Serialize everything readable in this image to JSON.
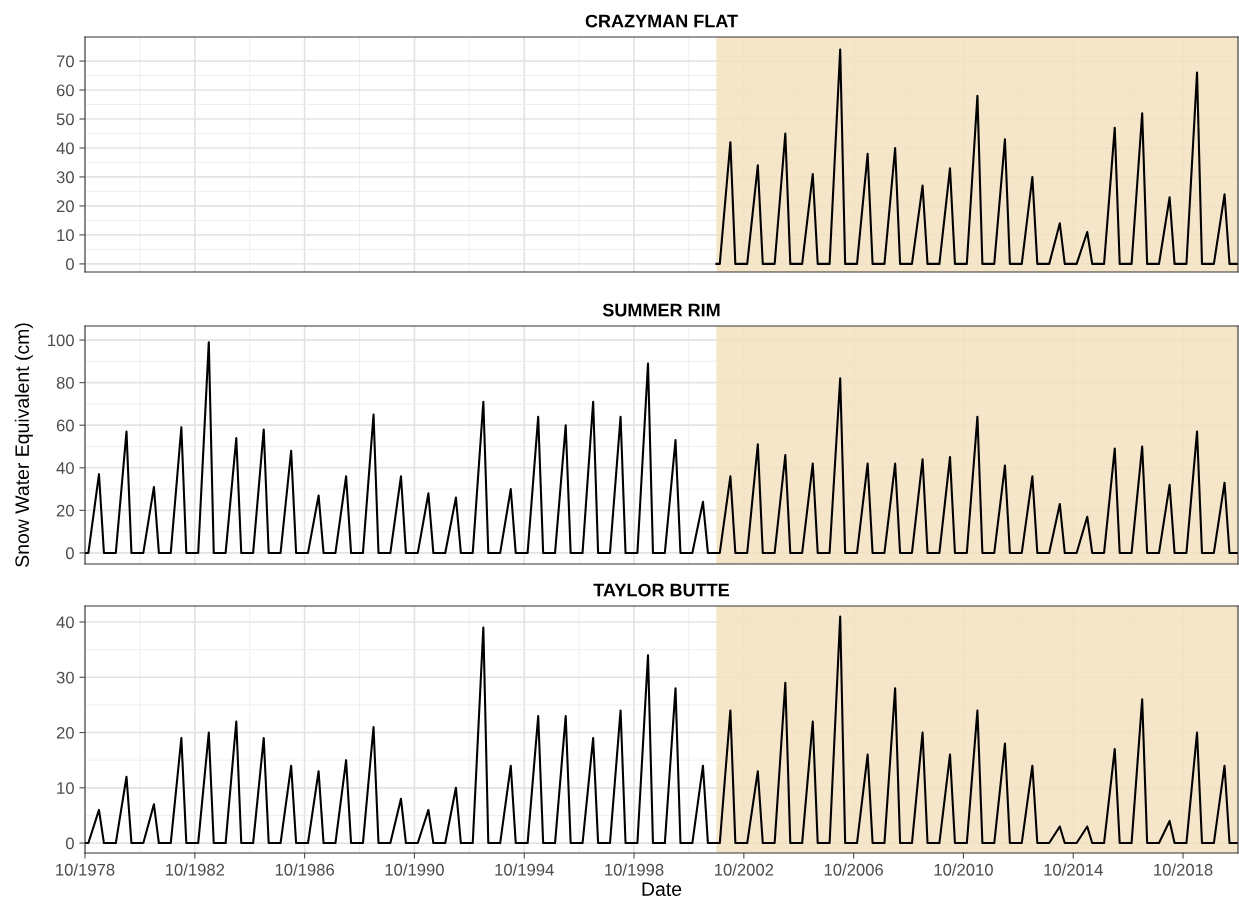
{
  "chart_data": [
    {
      "type": "line",
      "title": "CRAZYMAN FLAT",
      "color": "#000000",
      "tick_labels": "y",
      "grid": true,
      "x": [
        "2001-10-01",
        "2001-11-15",
        "2002-04-05",
        "2002-06-10",
        "2002-11-15",
        "2003-04-05",
        "2003-06-10",
        "2003-11-15",
        "2004-04-05",
        "2004-06-10",
        "2004-11-15",
        "2005-04-05",
        "2005-06-10",
        "2005-11-15",
        "2006-04-05",
        "2006-06-10",
        "2006-11-15",
        "2007-04-05",
        "2007-06-10",
        "2007-11-15",
        "2008-04-05",
        "2008-06-10",
        "2008-11-15",
        "2009-04-05",
        "2009-06-10",
        "2009-11-15",
        "2010-04-05",
        "2010-06-10",
        "2010-11-15",
        "2011-04-05",
        "2011-06-10",
        "2011-11-15",
        "2012-04-05",
        "2012-06-10",
        "2012-11-15",
        "2013-04-05",
        "2013-06-10",
        "2013-11-15",
        "2014-04-05",
        "2014-06-10",
        "2014-11-15",
        "2015-04-05",
        "2015-06-10",
        "2015-11-15",
        "2016-04-05",
        "2016-06-10",
        "2016-11-15",
        "2017-04-05",
        "2017-06-10",
        "2017-11-15",
        "2018-04-05",
        "2018-06-10",
        "2018-11-15",
        "2019-04-05",
        "2019-06-10",
        "2019-11-15",
        "2020-04-05",
        "2020-06-10",
        "2020-09-30"
      ],
      "values": [
        0,
        0,
        42,
        0,
        0,
        34,
        0,
        0,
        45,
        0,
        0,
        31,
        0,
        0,
        74,
        0,
        0,
        38,
        0,
        0,
        40,
        0,
        0,
        27,
        0,
        0,
        33,
        0,
        0,
        58,
        0,
        0,
        43,
        0,
        0,
        30,
        0,
        0,
        14,
        0,
        0,
        11,
        0,
        0,
        47,
        0,
        0,
        52,
        0,
        0,
        23,
        0,
        0,
        66,
        0,
        0,
        24,
        0,
        0
      ],
      "xlim": [
        "1978-10-01",
        "2020-10-01"
      ],
      "xticks": [
        "1978-10-01",
        "1982-10-01",
        "1986-10-01",
        "1990-10-01",
        "1994-10-01",
        "1998-10-01",
        "2002-10-01",
        "2006-10-01",
        "2010-10-01",
        "2014-10-01",
        "2018-10-01"
      ],
      "ylim": [
        -2.8,
        78.3
      ],
      "yticks": [
        0,
        10,
        20,
        30,
        40,
        50,
        60,
        70
      ],
      "bands": [
        {
          "axis": "x",
          "from": "2001-10-01",
          "to": "2020-10-01",
          "color": "#f3e0bf"
        }
      ]
    },
    {
      "type": "line",
      "title": "SUMMER RIM",
      "ylabel": "Snow Water Equivalent (cm)",
      "color": "#000000",
      "tick_labels": "y",
      "grid": true,
      "x": [
        "1978-10-01",
        "1978-11-15",
        "1979-04-05",
        "1979-06-10",
        "1979-11-15",
        "1980-04-05",
        "1980-06-10",
        "1980-11-15",
        "1981-04-05",
        "1981-06-10",
        "1981-11-15",
        "1982-04-05",
        "1982-06-10",
        "1982-11-15",
        "1983-04-05",
        "1983-06-10",
        "1983-11-15",
        "1984-04-05",
        "1984-06-10",
        "1984-11-15",
        "1985-04-05",
        "1985-06-10",
        "1985-11-15",
        "1986-04-05",
        "1986-06-10",
        "1986-11-15",
        "1987-04-05",
        "1987-06-10",
        "1987-11-15",
        "1988-04-05",
        "1988-06-10",
        "1988-11-15",
        "1989-04-05",
        "1989-06-10",
        "1989-11-15",
        "1990-04-05",
        "1990-06-10",
        "1990-11-15",
        "1991-04-05",
        "1991-06-10",
        "1991-11-15",
        "1992-04-05",
        "1992-06-10",
        "1992-11-15",
        "1993-04-05",
        "1993-06-10",
        "1993-11-15",
        "1994-04-05",
        "1994-06-10",
        "1994-11-15",
        "1995-04-05",
        "1995-06-10",
        "1995-11-15",
        "1996-04-05",
        "1996-06-10",
        "1996-11-15",
        "1997-04-05",
        "1997-06-10",
        "1997-11-15",
        "1998-04-05",
        "1998-06-10",
        "1998-11-15",
        "1999-04-05",
        "1999-06-10",
        "1999-11-15",
        "2000-04-05",
        "2000-06-10",
        "2000-11-15",
        "2001-04-05",
        "2001-06-10",
        "2001-11-15",
        "2002-04-05",
        "2002-06-10",
        "2002-11-15",
        "2003-04-05",
        "2003-06-10",
        "2003-11-15",
        "2004-04-05",
        "2004-06-10",
        "2004-11-15",
        "2005-04-05",
        "2005-06-10",
        "2005-11-15",
        "2006-04-05",
        "2006-06-10",
        "2006-11-15",
        "2007-04-05",
        "2007-06-10",
        "2007-11-15",
        "2008-04-05",
        "2008-06-10",
        "2008-11-15",
        "2009-04-05",
        "2009-06-10",
        "2009-11-15",
        "2010-04-05",
        "2010-06-10",
        "2010-11-15",
        "2011-04-05",
        "2011-06-10",
        "2011-11-15",
        "2012-04-05",
        "2012-06-10",
        "2012-11-15",
        "2013-04-05",
        "2013-06-10",
        "2013-11-15",
        "2014-04-05",
        "2014-06-10",
        "2014-11-15",
        "2015-04-05",
        "2015-06-10",
        "2015-11-15",
        "2016-04-05",
        "2016-06-10",
        "2016-11-15",
        "2017-04-05",
        "2017-06-10",
        "2017-11-15",
        "2018-04-05",
        "2018-06-10",
        "2018-11-15",
        "2019-04-05",
        "2019-06-10",
        "2019-11-15",
        "2020-04-05",
        "2020-06-10",
        "2020-09-30"
      ],
      "values": [
        0,
        0,
        37,
        0,
        0,
        57,
        0,
        0,
        31,
        0,
        0,
        59,
        0,
        0,
        99,
        0,
        0,
        54,
        0,
        0,
        58,
        0,
        0,
        48,
        0,
        0,
        27,
        0,
        0,
        36,
        0,
        0,
        65,
        0,
        0,
        36,
        0,
        0,
        28,
        0,
        0,
        26,
        0,
        0,
        71,
        0,
        0,
        30,
        0,
        0,
        64,
        0,
        0,
        60,
        0,
        0,
        71,
        0,
        0,
        64,
        0,
        0,
        89,
        0,
        0,
        53,
        0,
        0,
        24,
        0,
        0,
        36,
        0,
        0,
        51,
        0,
        0,
        46,
        0,
        0,
        42,
        0,
        0,
        82,
        0,
        0,
        42,
        0,
        0,
        42,
        0,
        0,
        44,
        0,
        0,
        45,
        0,
        0,
        64,
        0,
        0,
        41,
        0,
        0,
        36,
        0,
        0,
        23,
        0,
        0,
        17,
        0,
        0,
        49,
        0,
        0,
        50,
        0,
        0,
        32,
        0,
        0,
        57,
        0,
        0,
        33,
        0,
        0
      ],
      "xlim": [
        "1978-10-01",
        "2020-10-01"
      ],
      "xticks": [
        "1978-10-01",
        "1982-10-01",
        "1986-10-01",
        "1990-10-01",
        "1994-10-01",
        "1998-10-01",
        "2002-10-01",
        "2006-10-01",
        "2010-10-01",
        "2014-10-01",
        "2018-10-01"
      ],
      "ylim": [
        -5.2,
        106.6
      ],
      "yticks": [
        0,
        20,
        40,
        60,
        80,
        100
      ],
      "bands": [
        {
          "axis": "x",
          "from": "2001-10-01",
          "to": "2020-10-01",
          "color": "#f3e0bf"
        }
      ]
    },
    {
      "type": "line",
      "title": "TAYLOR BUTTE",
      "xlabel": "Date",
      "color": "#000000",
      "grid": true,
      "x": [
        "1978-10-01",
        "1978-11-15",
        "1979-04-05",
        "1979-06-10",
        "1979-11-15",
        "1980-04-05",
        "1980-06-10",
        "1980-11-15",
        "1981-04-05",
        "1981-06-10",
        "1981-11-15",
        "1982-04-05",
        "1982-06-10",
        "1982-11-15",
        "1983-04-05",
        "1983-06-10",
        "1983-11-15",
        "1984-04-05",
        "1984-06-10",
        "1984-11-15",
        "1985-04-05",
        "1985-06-10",
        "1985-11-15",
        "1986-04-05",
        "1986-06-10",
        "1986-11-15",
        "1987-04-05",
        "1987-06-10",
        "1987-11-15",
        "1988-04-05",
        "1988-06-10",
        "1988-11-15",
        "1989-04-05",
        "1989-06-10",
        "1989-11-15",
        "1990-04-05",
        "1990-06-10",
        "1990-11-15",
        "1991-04-05",
        "1991-06-10",
        "1991-11-15",
        "1992-04-05",
        "1992-06-10",
        "1992-11-15",
        "1993-04-05",
        "1993-06-10",
        "1993-11-15",
        "1994-04-05",
        "1994-06-10",
        "1994-11-15",
        "1995-04-05",
        "1995-06-10",
        "1995-11-15",
        "1996-04-05",
        "1996-06-10",
        "1996-11-15",
        "1997-04-05",
        "1997-06-10",
        "1997-11-15",
        "1998-04-05",
        "1998-06-10",
        "1998-11-15",
        "1999-04-05",
        "1999-06-10",
        "1999-11-15",
        "2000-04-05",
        "2000-06-10",
        "2000-11-15",
        "2001-04-05",
        "2001-06-10",
        "2001-11-15",
        "2002-04-05",
        "2002-06-10",
        "2002-11-15",
        "2003-04-05",
        "2003-06-10",
        "2003-11-15",
        "2004-04-05",
        "2004-06-10",
        "2004-11-15",
        "2005-04-05",
        "2005-06-10",
        "2005-11-15",
        "2006-04-05",
        "2006-06-10",
        "2006-11-15",
        "2007-04-05",
        "2007-06-10",
        "2007-11-15",
        "2008-04-05",
        "2008-06-10",
        "2008-11-15",
        "2009-04-05",
        "2009-06-10",
        "2009-11-15",
        "2010-04-05",
        "2010-06-10",
        "2010-11-15",
        "2011-04-05",
        "2011-06-10",
        "2011-11-15",
        "2012-04-05",
        "2012-06-10",
        "2012-11-15",
        "2013-04-05",
        "2013-06-10",
        "2013-11-15",
        "2014-04-05",
        "2014-06-10",
        "2014-11-15",
        "2015-04-05",
        "2015-06-10",
        "2015-11-15",
        "2016-04-05",
        "2016-06-10",
        "2016-11-15",
        "2017-04-05",
        "2017-06-10",
        "2017-11-15",
        "2018-04-05",
        "2018-06-10",
        "2018-11-15",
        "2019-04-05",
        "2019-06-10",
        "2019-11-15",
        "2020-04-05",
        "2020-06-10",
        "2020-09-30"
      ],
      "values": [
        0,
        0,
        6,
        0,
        0,
        12,
        0,
        0,
        7,
        0,
        0,
        19,
        0,
        0,
        20,
        0,
        0,
        22,
        0,
        0,
        19,
        0,
        0,
        14,
        0,
        0,
        13,
        0,
        0,
        15,
        0,
        0,
        21,
        0,
        0,
        8,
        0,
        0,
        6,
        0,
        0,
        10,
        0,
        0,
        39,
        0,
        0,
        14,
        0,
        0,
        23,
        0,
        0,
        23,
        0,
        0,
        19,
        0,
        0,
        24,
        0,
        0,
        34,
        0,
        0,
        28,
        0,
        0,
        14,
        0,
        0,
        24,
        0,
        0,
        13,
        0,
        0,
        29,
        0,
        0,
        22,
        0,
        0,
        41,
        0,
        0,
        16,
        0,
        0,
        28,
        0,
        0,
        20,
        0,
        0,
        16,
        0,
        0,
        24,
        0,
        0,
        18,
        0,
        0,
        14,
        0,
        0,
        3,
        0,
        0,
        3,
        0,
        0,
        17,
        0,
        0,
        26,
        0,
        0,
        4,
        0,
        0,
        20,
        0,
        0,
        14,
        0,
        0
      ],
      "xlim": [
        "1978-10-01",
        "2020-10-01"
      ],
      "xticks": [
        {
          "value": "1978-10-01",
          "label": "10/1978"
        },
        {
          "value": "1982-10-01",
          "label": "10/1982"
        },
        {
          "value": "1986-10-01",
          "label": "10/1986"
        },
        {
          "value": "1990-10-01",
          "label": "10/1990"
        },
        {
          "value": "1994-10-01",
          "label": "10/1994"
        },
        {
          "value": "1998-10-01",
          "label": "10/1998"
        },
        {
          "value": "2002-10-01",
          "label": "10/2002"
        },
        {
          "value": "2006-10-01",
          "label": "10/2006"
        },
        {
          "value": "2010-10-01",
          "label": "10/2010"
        },
        {
          "value": "2014-10-01",
          "label": "10/2014"
        },
        {
          "value": "2018-10-01",
          "label": "10/2018"
        }
      ],
      "ylim": [
        -1.8,
        42.9
      ],
      "yticks": [
        0,
        10,
        20,
        30,
        40
      ],
      "bands": [
        {
          "axis": "x",
          "from": "2001-10-01",
          "to": "2020-10-01",
          "color": "#f3e0bf"
        }
      ]
    }
  ]
}
